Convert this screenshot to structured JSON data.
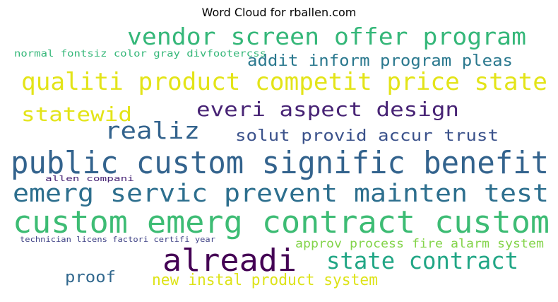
{
  "chart_data": {
    "type": "wordcloud",
    "title": "Word Cloud for rballen.com",
    "words": [
      {
        "text": "vendor screen offer program",
        "color": "#35b779"
      },
      {
        "text": "normal fontsiz color gray divfootercss",
        "color": "#35b779"
      },
      {
        "text": "addit inform program pleas",
        "color": "#2a788e"
      },
      {
        "text": "qualiti product competit price state",
        "color": "#e3e418"
      },
      {
        "text": "statewid",
        "color": "#e3e418"
      },
      {
        "text": "everi aspect design",
        "color": "#482475"
      },
      {
        "text": "realiz",
        "color": "#33638d"
      },
      {
        "text": "solut provid accur trust",
        "color": "#3b528b"
      },
      {
        "text": "public custom signific benefit",
        "color": "#33638d"
      },
      {
        "text": "allen compani",
        "color": "#482475"
      },
      {
        "text": "emerg servic prevent mainten test",
        "color": "#2d6f8e"
      },
      {
        "text": "custom emerg contract custom",
        "color": "#3dbc74"
      },
      {
        "text": "technician licens factori certifi year",
        "color": "#414487"
      },
      {
        "text": "approv process fire alarm system",
        "color": "#84d44b"
      },
      {
        "text": "alreadi",
        "color": "#440154"
      },
      {
        "text": "state contract",
        "color": "#21a685"
      },
      {
        "text": "proof",
        "color": "#31688e"
      },
      {
        "text": "new instal product system",
        "color": "#dde318"
      }
    ]
  }
}
